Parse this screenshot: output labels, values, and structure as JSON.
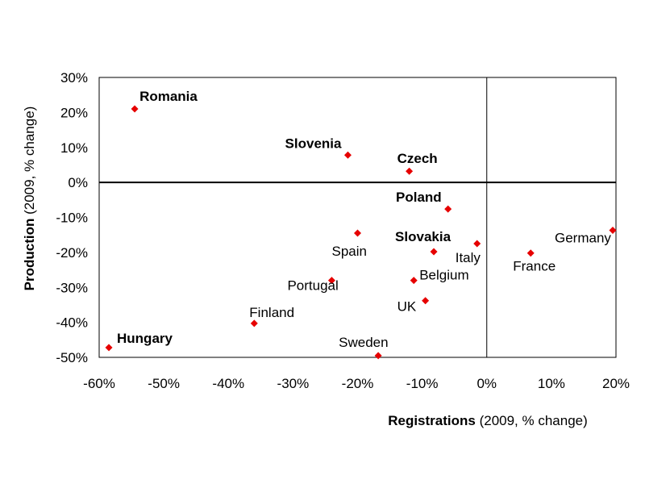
{
  "chart_data": {
    "type": "scatter",
    "xlabel_bold": "Registrations",
    "xlabel_rest": " (2009, % change)",
    "ylabel_bold": "Production",
    "ylabel_rest": " (2009, % change)",
    "xlim": [
      -60,
      20
    ],
    "ylim": [
      -50,
      30
    ],
    "x_ticks": [
      -60,
      -50,
      -40,
      -30,
      -20,
      -10,
      0,
      10,
      20
    ],
    "y_ticks": [
      30,
      20,
      10,
      0,
      -10,
      -20,
      -30,
      -40,
      -50
    ],
    "x_tick_labels": [
      "-60%",
      "-50%",
      "-40%",
      "-30%",
      "-20%",
      "-10%",
      "0%",
      "10%",
      "20%"
    ],
    "y_tick_labels": [
      "30%",
      "20%",
      "10%",
      "0%",
      "-10%",
      "-20%",
      "-30%",
      "-40%",
      "-50%"
    ],
    "grid": false,
    "marker_color": "#e60000",
    "points": [
      {
        "label": "Romania",
        "x": -54.5,
        "y": 21,
        "bold": true
      },
      {
        "label": "Slovenia",
        "x": -21.5,
        "y": 7.8,
        "bold": true
      },
      {
        "label": "Czech",
        "x": -12,
        "y": 3.2,
        "bold": true
      },
      {
        "label": "Poland",
        "x": -6,
        "y": -7.6,
        "bold": true
      },
      {
        "label": "Spain",
        "x": -20,
        "y": -14.5,
        "bold": false
      },
      {
        "label": "Slovakia",
        "x": -8.2,
        "y": -19.8,
        "bold": true
      },
      {
        "label": "Italy",
        "x": -1.5,
        "y": -17.5,
        "bold": false
      },
      {
        "label": "France",
        "x": 6.8,
        "y": -20.2,
        "bold": false
      },
      {
        "label": "Germany",
        "x": 19.5,
        "y": -13.7,
        "bold": false
      },
      {
        "label": "Portugal",
        "x": -24,
        "y": -28,
        "bold": false
      },
      {
        "label": "Belgium",
        "x": -11.3,
        "y": -28,
        "bold": false
      },
      {
        "label": "UK",
        "x": -9.5,
        "y": -33.8,
        "bold": false
      },
      {
        "label": "Finland",
        "x": -36,
        "y": -40.3,
        "bold": false
      },
      {
        "label": "Sweden",
        "x": -16.8,
        "y": -49.5,
        "bold": false
      },
      {
        "label": "Hungary",
        "x": -58.5,
        "y": -47.2,
        "bold": true
      }
    ]
  }
}
